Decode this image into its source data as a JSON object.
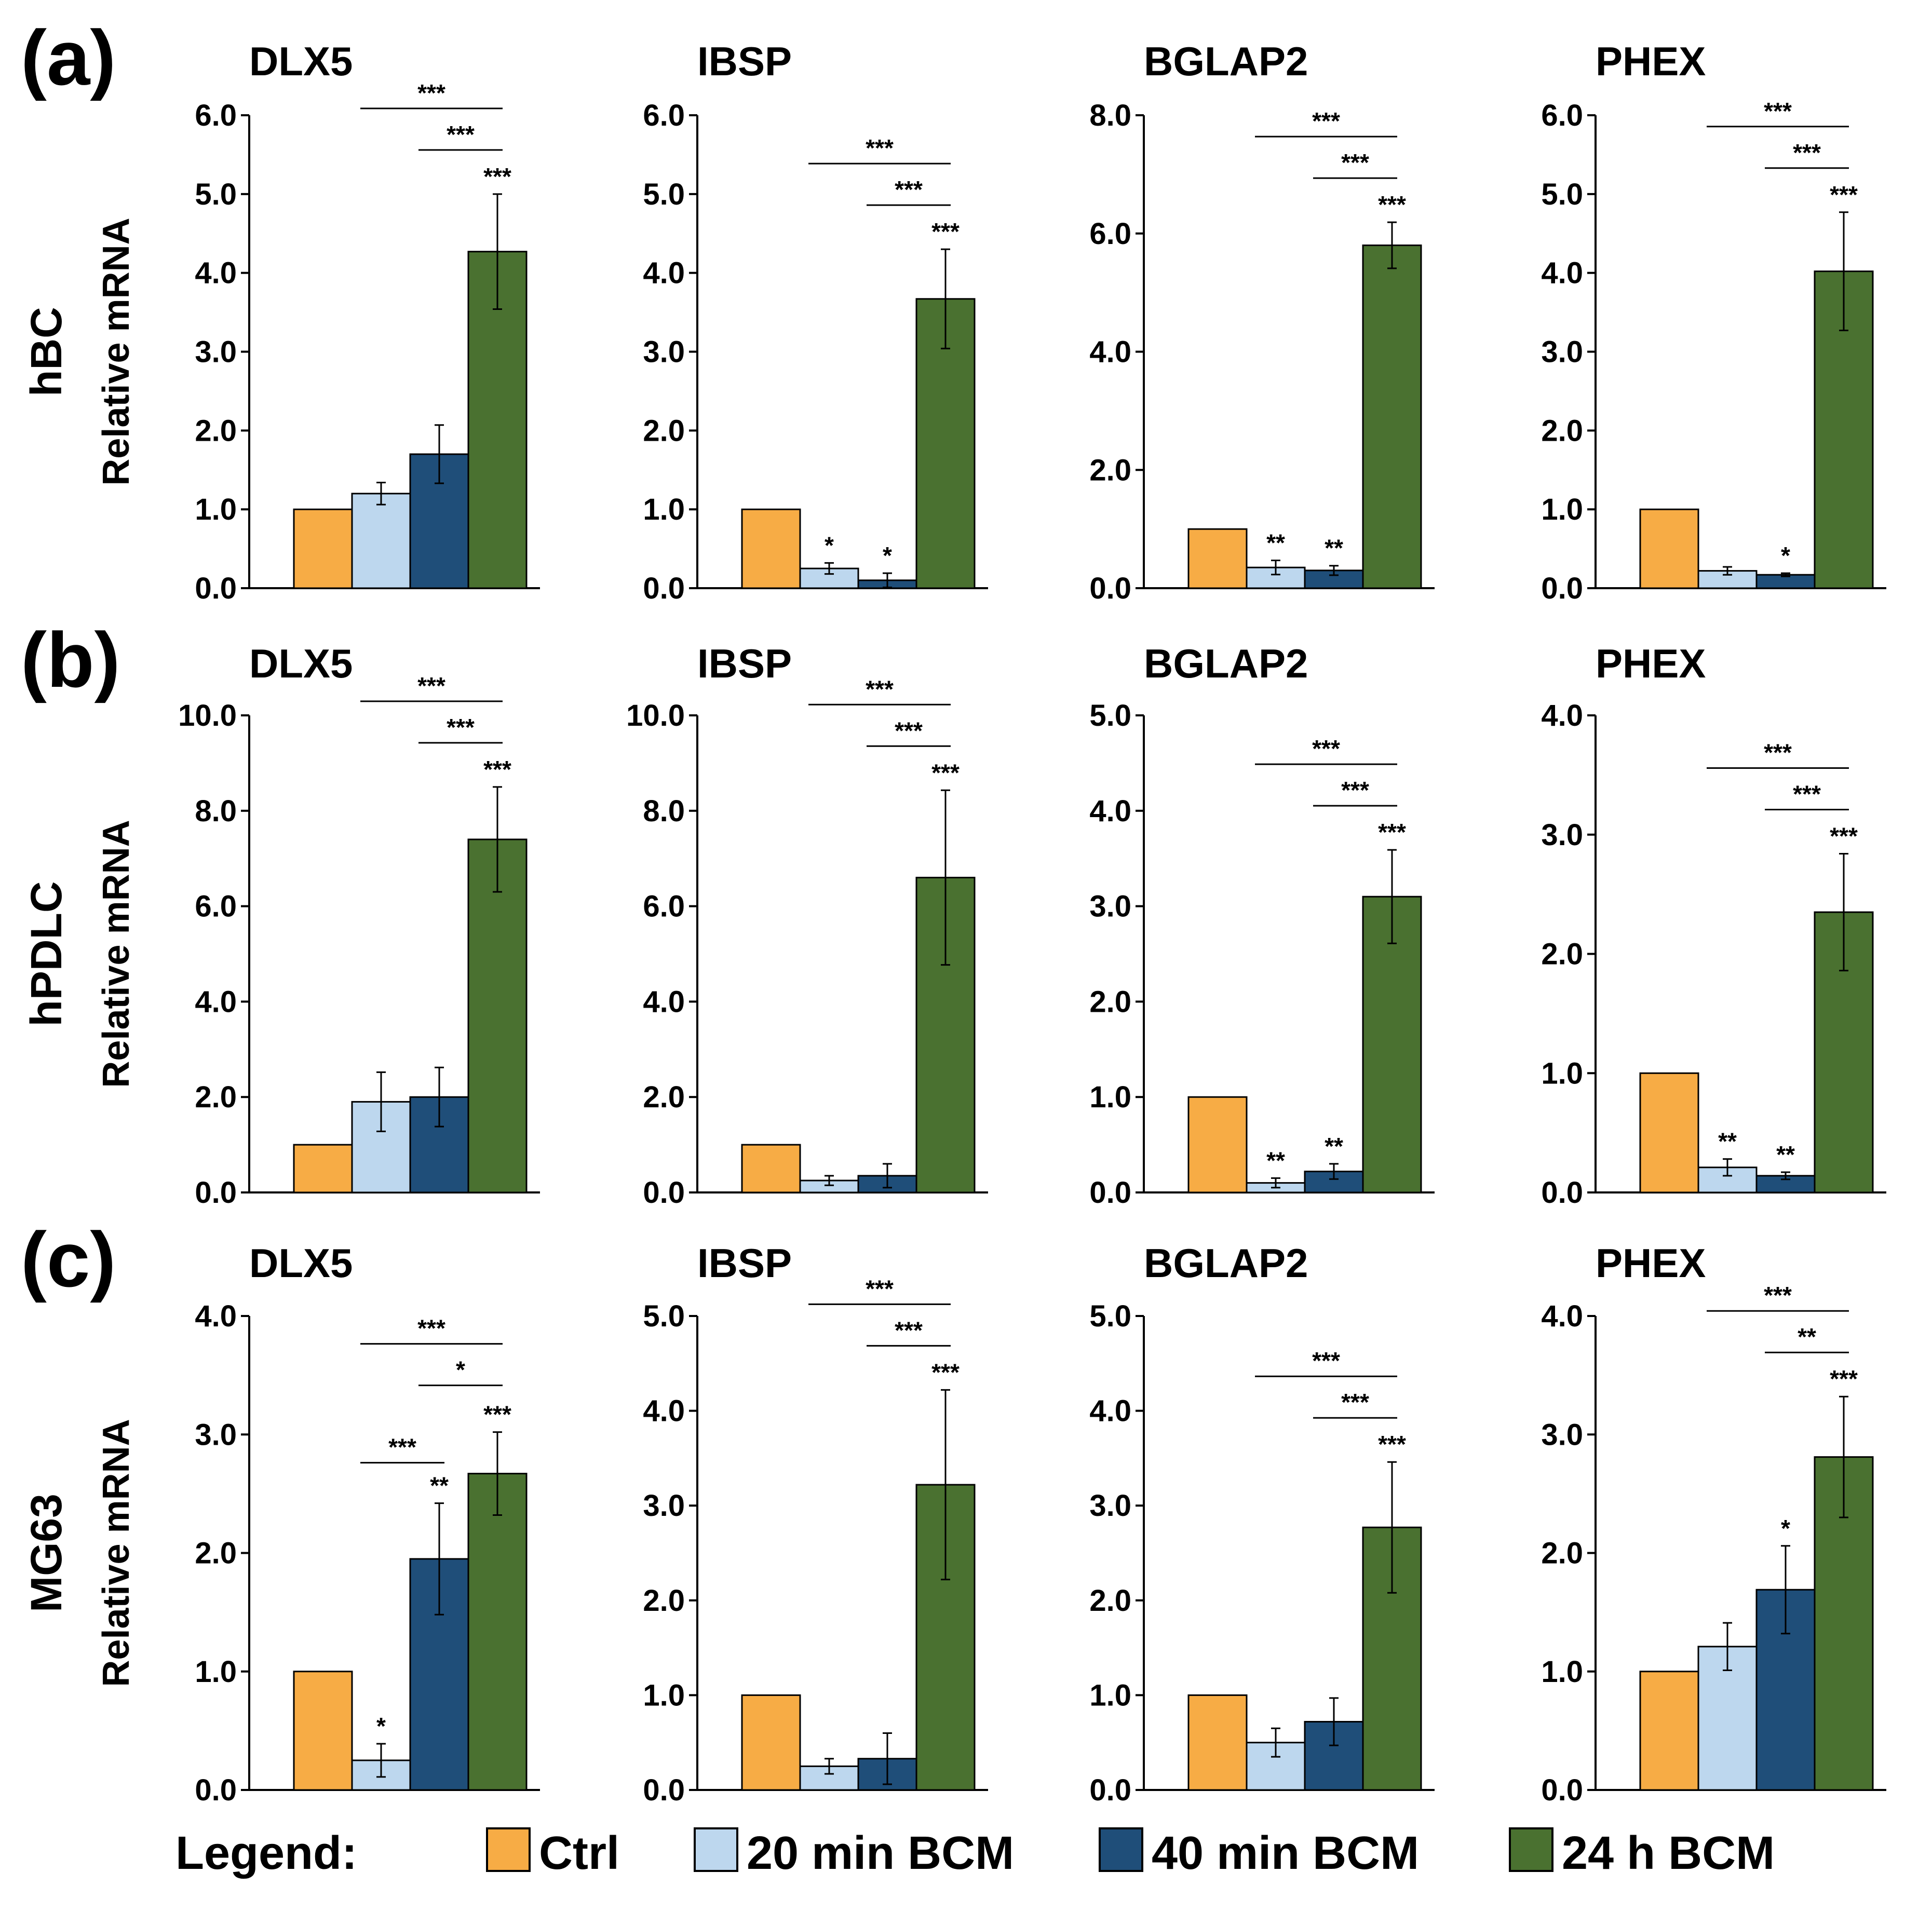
{
  "colors": {
    "Ctrl": "#F7AC45",
    "20 min BCM": "#BDD7EE",
    "40 min BCM": "#1F4E79",
    "24 h BCM": "#4A7130"
  },
  "legend": {
    "title": "Legend:",
    "items": [
      "Ctrl",
      "20 min BCM",
      "40 min BCM",
      "24 h BCM"
    ]
  },
  "y_axis_label": "Relative mRNA",
  "chart_data": [
    {
      "panel": "(a)",
      "row_label": "hBC",
      "type": "bar",
      "title": "DLX5",
      "categories": [
        "Ctrl",
        "20 min BCM",
        "40 min BCM",
        "24 h BCM"
      ],
      "values": [
        1.0,
        1.2,
        1.7,
        4.27
      ],
      "errors": [
        0,
        0.14,
        0.37,
        0.73
      ],
      "ylim": [
        0,
        6.0
      ],
      "yticks": [
        "0.0",
        "1.0",
        "2.0",
        "3.0",
        "4.0",
        "5.0",
        "6.0"
      ],
      "bar_stars": [
        "",
        "",
        "",
        "***"
      ],
      "brackets": [
        {
          "from": 1,
          "to": 3,
          "label": "***"
        },
        {
          "from": 2,
          "to": 3,
          "label": "***"
        }
      ]
    },
    {
      "panel": "",
      "row_label": "",
      "type": "bar",
      "title": "IBSP",
      "categories": [
        "Ctrl",
        "20 min BCM",
        "40 min BCM",
        "24 h BCM"
      ],
      "values": [
        1.0,
        0.25,
        0.1,
        3.67
      ],
      "errors": [
        0,
        0.07,
        0.09,
        0.63
      ],
      "ylim": [
        0,
        6.0
      ],
      "yticks": [
        "0.0",
        "1.0",
        "2.0",
        "3.0",
        "4.0",
        "5.0",
        "6.0"
      ],
      "bar_stars": [
        "",
        "*",
        "*",
        "***"
      ],
      "brackets": [
        {
          "from": 1,
          "to": 3,
          "label": "***"
        },
        {
          "from": 2,
          "to": 3,
          "label": "***"
        }
      ]
    },
    {
      "panel": "",
      "row_label": "",
      "type": "bar",
      "title": "BGLAP2",
      "categories": [
        "Ctrl",
        "20 min BCM",
        "40 min BCM",
        "24 h BCM"
      ],
      "values": [
        1.0,
        0.35,
        0.3,
        5.8
      ],
      "errors": [
        0,
        0.12,
        0.08,
        0.39
      ],
      "ylim": [
        0,
        8.0
      ],
      "yticks": [
        "0.0",
        "2.0",
        "4.0",
        "6.0",
        "8.0"
      ],
      "bar_stars": [
        "",
        "**",
        "**",
        "***"
      ],
      "brackets": [
        {
          "from": 1,
          "to": 3,
          "label": "***"
        },
        {
          "from": 2,
          "to": 3,
          "label": "***"
        }
      ]
    },
    {
      "panel": "",
      "row_label": "",
      "type": "bar",
      "title": "PHEX",
      "categories": [
        "Ctrl",
        "20 min BCM",
        "40 min BCM",
        "24 h BCM"
      ],
      "values": [
        1.0,
        0.22,
        0.17,
        4.02
      ],
      "errors": [
        0,
        0.05,
        0.02,
        0.75
      ],
      "ylim": [
        0,
        6.0
      ],
      "yticks": [
        "0.0",
        "1.0",
        "2.0",
        "3.0",
        "4.0",
        "5.0",
        "6.0"
      ],
      "bar_stars": [
        "",
        "",
        "*",
        "***"
      ],
      "brackets": [
        {
          "from": 1,
          "to": 3,
          "label": "***"
        },
        {
          "from": 2,
          "to": 3,
          "label": "***"
        }
      ]
    },
    {
      "panel": "(b)",
      "row_label": "hPDLC",
      "type": "bar",
      "title": "DLX5",
      "categories": [
        "Ctrl",
        "20 min BCM",
        "40 min BCM",
        "24 h BCM"
      ],
      "values": [
        1.0,
        1.9,
        2.0,
        7.4
      ],
      "errors": [
        0,
        0.62,
        0.62,
        1.1
      ],
      "ylim": [
        0,
        10.0
      ],
      "yticks": [
        "0.0",
        "2.0",
        "4.0",
        "6.0",
        "8.0",
        "10.0"
      ],
      "bar_stars": [
        "",
        "",
        "",
        "***"
      ],
      "brackets": [
        {
          "from": 1,
          "to": 3,
          "label": "***"
        },
        {
          "from": 2,
          "to": 3,
          "label": "***"
        }
      ]
    },
    {
      "panel": "",
      "row_label": "",
      "type": "bar",
      "title": "IBSP",
      "categories": [
        "Ctrl",
        "20 min BCM",
        "40 min BCM",
        "24 h BCM"
      ],
      "values": [
        1.0,
        0.25,
        0.35,
        6.6
      ],
      "errors": [
        0,
        0.1,
        0.25,
        1.83
      ],
      "ylim": [
        0,
        10.0
      ],
      "yticks": [
        "0.0",
        "2.0",
        "4.0",
        "6.0",
        "8.0",
        "10.0"
      ],
      "bar_stars": [
        "",
        "",
        "",
        "***"
      ],
      "brackets": [
        {
          "from": 1,
          "to": 3,
          "label": "***"
        },
        {
          "from": 2,
          "to": 3,
          "label": "***"
        }
      ]
    },
    {
      "panel": "",
      "row_label": "",
      "type": "bar",
      "title": "BGLAP2",
      "categories": [
        "Ctrl",
        "20 min BCM",
        "40 min BCM",
        "24 h BCM"
      ],
      "values": [
        1.0,
        0.1,
        0.22,
        3.1
      ],
      "errors": [
        0,
        0.05,
        0.08,
        0.49
      ],
      "ylim": [
        0,
        5.0
      ],
      "yticks": [
        "0.0",
        "1.0",
        "2.0",
        "3.0",
        "4.0",
        "5.0"
      ],
      "bar_stars": [
        "",
        "**",
        "**",
        "***"
      ],
      "brackets": [
        {
          "from": 1,
          "to": 3,
          "label": "***"
        },
        {
          "from": 2,
          "to": 3,
          "label": "***"
        }
      ]
    },
    {
      "panel": "",
      "row_label": "",
      "type": "bar",
      "title": "PHEX",
      "categories": [
        "Ctrl",
        "20 min BCM",
        "40 min BCM",
        "24 h BCM"
      ],
      "values": [
        1.0,
        0.21,
        0.14,
        2.35
      ],
      "errors": [
        0,
        0.07,
        0.03,
        0.49
      ],
      "ylim": [
        0,
        4.0
      ],
      "yticks": [
        "0.0",
        "1.0",
        "2.0",
        "3.0",
        "4.0"
      ],
      "bar_stars": [
        "",
        "**",
        "**",
        "***"
      ],
      "brackets": [
        {
          "from": 1,
          "to": 3,
          "label": "***"
        },
        {
          "from": 2,
          "to": 3,
          "label": "***"
        }
      ]
    },
    {
      "panel": "(c)",
      "row_label": "MG63",
      "type": "bar",
      "title": "DLX5",
      "categories": [
        "Ctrl",
        "20 min BCM",
        "40 min BCM",
        "24 h BCM"
      ],
      "values": [
        1.0,
        0.25,
        1.95,
        2.67
      ],
      "errors": [
        0,
        0.14,
        0.47,
        0.35
      ],
      "ylim": [
        0,
        4.0
      ],
      "yticks": [
        "0.0",
        "1.0",
        "2.0",
        "3.0",
        "4.0"
      ],
      "bar_stars": [
        "",
        "*",
        "**",
        "***"
      ],
      "brackets": [
        {
          "from": 1,
          "to": 3,
          "label": "***"
        },
        {
          "from": 2,
          "to": 3,
          "label": "*"
        },
        {
          "from": 1,
          "to": 2,
          "label": "***"
        }
      ]
    },
    {
      "panel": "",
      "row_label": "",
      "type": "bar",
      "title": "IBSP",
      "categories": [
        "Ctrl",
        "20 min BCM",
        "40 min BCM",
        "24 h BCM"
      ],
      "values": [
        1.0,
        0.25,
        0.33,
        3.22
      ],
      "errors": [
        0,
        0.08,
        0.27,
        1.0
      ],
      "ylim": [
        0,
        5.0
      ],
      "yticks": [
        "0.0",
        "1.0",
        "2.0",
        "3.0",
        "4.0",
        "5.0"
      ],
      "bar_stars": [
        "",
        "",
        "",
        "***"
      ],
      "brackets": [
        {
          "from": 1,
          "to": 3,
          "label": "***"
        },
        {
          "from": 2,
          "to": 3,
          "label": "***"
        }
      ]
    },
    {
      "panel": "",
      "row_label": "",
      "type": "bar",
      "title": "BGLAP2",
      "categories": [
        "Ctrl",
        "20 min BCM",
        "40 min BCM",
        "24 h BCM"
      ],
      "values": [
        1.0,
        0.5,
        0.72,
        2.77
      ],
      "errors": [
        0,
        0.15,
        0.25,
        0.69
      ],
      "ylim": [
        0,
        5.0
      ],
      "yticks": [
        "0.0",
        "1.0",
        "2.0",
        "3.0",
        "4.0",
        "5.0"
      ],
      "bar_stars": [
        "",
        "",
        "",
        "***"
      ],
      "brackets": [
        {
          "from": 1,
          "to": 3,
          "label": "***"
        },
        {
          "from": 2,
          "to": 3,
          "label": "***"
        }
      ]
    },
    {
      "panel": "",
      "row_label": "",
      "type": "bar",
      "title": "PHEX",
      "categories": [
        "Ctrl",
        "20 min BCM",
        "40 min BCM",
        "24 h BCM"
      ],
      "values": [
        1.0,
        1.21,
        1.69,
        2.81
      ],
      "errors": [
        0,
        0.2,
        0.37,
        0.51
      ],
      "ylim": [
        0,
        4.0
      ],
      "yticks": [
        "0.0",
        "1.0",
        "2.0",
        "3.0",
        "4.0"
      ],
      "bar_stars": [
        "",
        "",
        "*",
        "***"
      ],
      "brackets": [
        {
          "from": 1,
          "to": 3,
          "label": "***"
        },
        {
          "from": 2,
          "to": 3,
          "label": "**"
        }
      ]
    }
  ]
}
